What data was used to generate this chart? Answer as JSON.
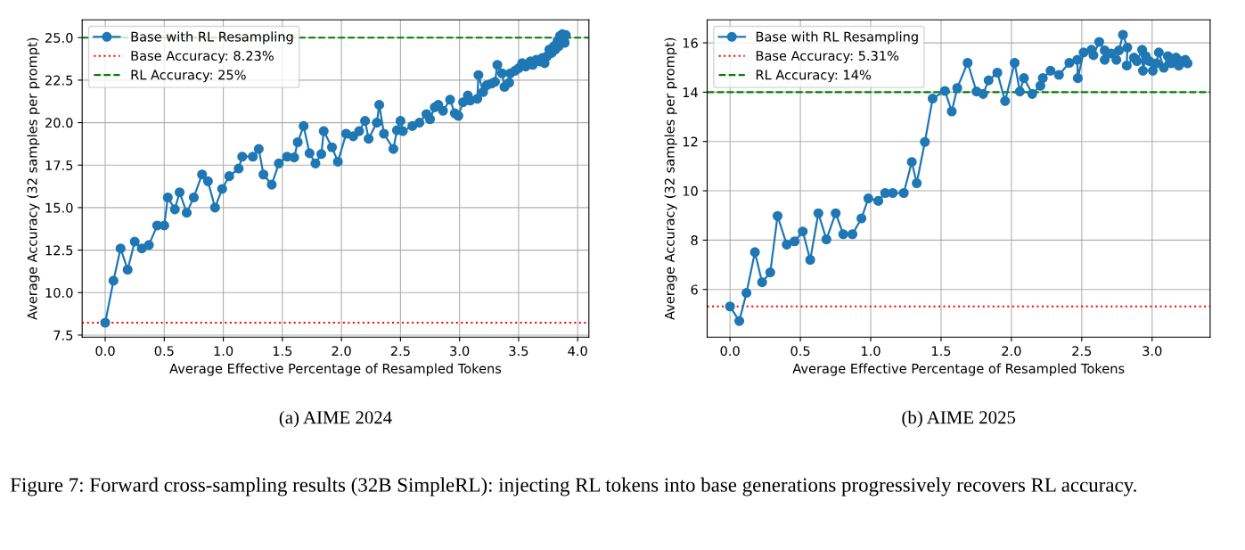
{
  "chart_data": [
    {
      "type": "line",
      "xlabel": "Average Effective Percentage of Resampled Tokens",
      "ylabel": "Average Accuracy (32 samples per prompt)",
      "annotations": [
        "(a) AIME 2024"
      ],
      "xlim": [
        -0.195,
        4.095
      ],
      "xticks": [
        {
          "value": 0,
          "label": "0.0"
        },
        0.5,
        {
          "value": 1,
          "label": "1.0"
        },
        1.5,
        {
          "value": 2,
          "label": "2.0"
        },
        2.5,
        {
          "value": 3,
          "label": "3.0"
        },
        3.5,
        {
          "value": 4,
          "label": "4.0"
        }
      ],
      "ylim": [
        7.38,
        26.05
      ],
      "yticks": [
        7.5,
        {
          "value": 10,
          "label": "10.0"
        },
        12.5,
        {
          "value": 15,
          "label": "15.0"
        },
        17.5,
        {
          "value": 20,
          "label": "20.0"
        },
        22.5,
        {
          "value": 25,
          "label": "25.0"
        }
      ],
      "grid": true,
      "legend": "top left",
      "marker": "circle",
      "line_style": "solid",
      "x": [
        0.0,
        0.07,
        0.13,
        0.19,
        0.25,
        0.31,
        0.37,
        0.44,
        0.5,
        0.53,
        0.59,
        0.63,
        0.69,
        0.75,
        0.82,
        0.87,
        0.93,
        0.99,
        1.05,
        1.13,
        1.16,
        1.25,
        1.3,
        1.34,
        1.41,
        1.47,
        1.54,
        1.6,
        1.63,
        1.68,
        1.73,
        1.78,
        1.83,
        1.85,
        1.92,
        1.97,
        2.04,
        2.1,
        2.15,
        2.2,
        2.23,
        2.3,
        2.32,
        2.36,
        2.44,
        2.47,
        2.5,
        2.52,
        2.6,
        2.66,
        2.72,
        2.75,
        2.79,
        2.82,
        2.86,
        2.92,
        2.96,
        2.99,
        3.03,
        3.07,
        3.09,
        3.15,
        3.16,
        3.2,
        3.23,
        3.27,
        3.3,
        3.32,
        3.36,
        3.38,
        3.42,
        3.43,
        3.47,
        3.5,
        3.53,
        3.56,
        3.6,
        3.62,
        3.65,
        3.68,
        3.7,
        3.72,
        3.74,
        3.76,
        3.78,
        3.8,
        3.81,
        3.83,
        3.84,
        3.85,
        3.86,
        3.87,
        3.88,
        3.89,
        3.9
      ],
      "series": [
        {
          "name": "Base with RL Resampling",
          "color": "#1f77b4",
          "values": [
            8.23,
            10.7,
            12.6,
            11.35,
            13.0,
            12.6,
            12.8,
            13.95,
            13.95,
            15.6,
            14.9,
            15.9,
            14.7,
            15.6,
            16.95,
            16.55,
            15.0,
            16.1,
            16.85,
            17.3,
            18.0,
            18.0,
            18.45,
            16.95,
            16.35,
            17.6,
            18.0,
            17.95,
            18.85,
            19.8,
            18.2,
            17.6,
            18.15,
            19.5,
            18.55,
            17.7,
            19.35,
            19.2,
            19.5,
            20.1,
            19.05,
            20.0,
            21.05,
            19.35,
            18.45,
            19.55,
            20.1,
            19.5,
            19.8,
            20.0,
            20.5,
            20.2,
            20.9,
            21.05,
            20.7,
            21.35,
            20.55,
            20.4,
            21.2,
            21.6,
            21.3,
            21.4,
            22.8,
            21.8,
            22.2,
            22.3,
            22.4,
            23.4,
            22.9,
            22.1,
            22.35,
            22.9,
            23.05,
            23.2,
            23.5,
            23.3,
            23.6,
            23.4,
            23.7,
            23.6,
            23.8,
            23.5,
            23.9,
            24.3,
            24.1,
            24.5,
            24.3,
            24.8,
            24.5,
            25.1,
            24.7,
            25.2,
            24.9,
            24.7,
            25.15
          ]
        }
      ],
      "ref_lines": [
        {
          "axis": "y",
          "value": 8.23,
          "label": "Base Accuracy: 8.23%",
          "color": "#ff0000",
          "line_style": "dotted"
        },
        {
          "axis": "y",
          "value": 25,
          "label": "RL Accuracy: 25%",
          "color": "#008000",
          "line_style": "dashed"
        }
      ]
    },
    {
      "type": "line",
      "xlabel": "Average Effective Percentage of Resampled Tokens",
      "ylabel": "Average Accuracy (32 samples per prompt)",
      "annotations": [
        "(b) AIME 2025",
        "Figure 7: Forward cross-sampling results (32B SimpleRL): injecting RL tokens into base generations progressively recovers RL accuracy."
      ],
      "xlim": [
        -0.1625,
        3.4125
      ],
      "xticks": [
        {
          "value": 0,
          "label": "0.0"
        },
        0.5,
        {
          "value": 1,
          "label": "1.0"
        },
        1.5,
        {
          "value": 2,
          "label": "2.0"
        },
        2.5,
        {
          "value": 3,
          "label": "3.0"
        }
      ],
      "ylim": [
        4.065,
        16.935
      ],
      "yticks": [
        6,
        8,
        10,
        12,
        14,
        16
      ],
      "grid": true,
      "legend": "top left",
      "marker": "circle",
      "line_style": "solid",
      "x": [
        0.0,
        0.066,
        0.117,
        0.177,
        0.228,
        0.286,
        0.338,
        0.403,
        0.459,
        0.517,
        0.57,
        0.628,
        0.685,
        0.751,
        0.805,
        0.87,
        0.934,
        0.983,
        1.054,
        1.103,
        1.156,
        1.235,
        1.292,
        1.327,
        1.385,
        1.44,
        1.527,
        1.576,
        1.615,
        1.689,
        1.752,
        1.799,
        1.838,
        1.9,
        1.955,
        2.023,
        2.06,
        2.089,
        2.148,
        2.206,
        2.223,
        2.278,
        2.338,
        2.412,
        2.468,
        2.472,
        2.513,
        2.569,
        2.583,
        2.624,
        2.663,
        2.663,
        2.709,
        2.746,
        2.764,
        2.793,
        2.824,
        2.82,
        2.871,
        2.892,
        2.929,
        2.935,
        2.955,
        2.98,
        3.005,
        3.03,
        3.048,
        3.083,
        3.112,
        3.137,
        3.17,
        3.19,
        3.211,
        3.236,
        3.252
      ],
      "series": [
        {
          "name": "Base with RL Resampling",
          "color": "#1f77b4",
          "values": [
            5.31,
            4.72,
            5.86,
            7.51,
            6.29,
            6.69,
            8.98,
            7.82,
            7.95,
            8.35,
            7.2,
            9.09,
            8.03,
            9.09,
            8.24,
            8.24,
            8.88,
            9.69,
            9.59,
            9.91,
            9.91,
            9.91,
            11.17,
            10.31,
            11.98,
            13.74,
            14.05,
            13.22,
            14.17,
            15.19,
            14.03,
            13.93,
            14.48,
            14.79,
            13.64,
            15.19,
            14.03,
            14.57,
            13.93,
            14.26,
            14.57,
            14.87,
            14.7,
            15.19,
            15.31,
            14.57,
            15.61,
            15.72,
            15.5,
            16.04,
            15.69,
            15.31,
            15.57,
            15.31,
            15.69,
            16.33,
            15.81,
            15.08,
            15.4,
            15.26,
            15.72,
            14.87,
            15.46,
            15.26,
            14.87,
            15.17,
            15.61,
            14.99,
            15.46,
            15.17,
            15.4,
            15.08,
            15.26,
            15.31,
            15.17
          ]
        }
      ],
      "ref_lines": [
        {
          "axis": "y",
          "value": 5.31,
          "label": "Base Accuracy: 5.31%",
          "color": "#ff0000",
          "line_style": "dotted"
        },
        {
          "axis": "y",
          "value": 14,
          "label": "RL Accuracy: 14%",
          "color": "#008000",
          "line_style": "dashed"
        }
      ]
    }
  ]
}
